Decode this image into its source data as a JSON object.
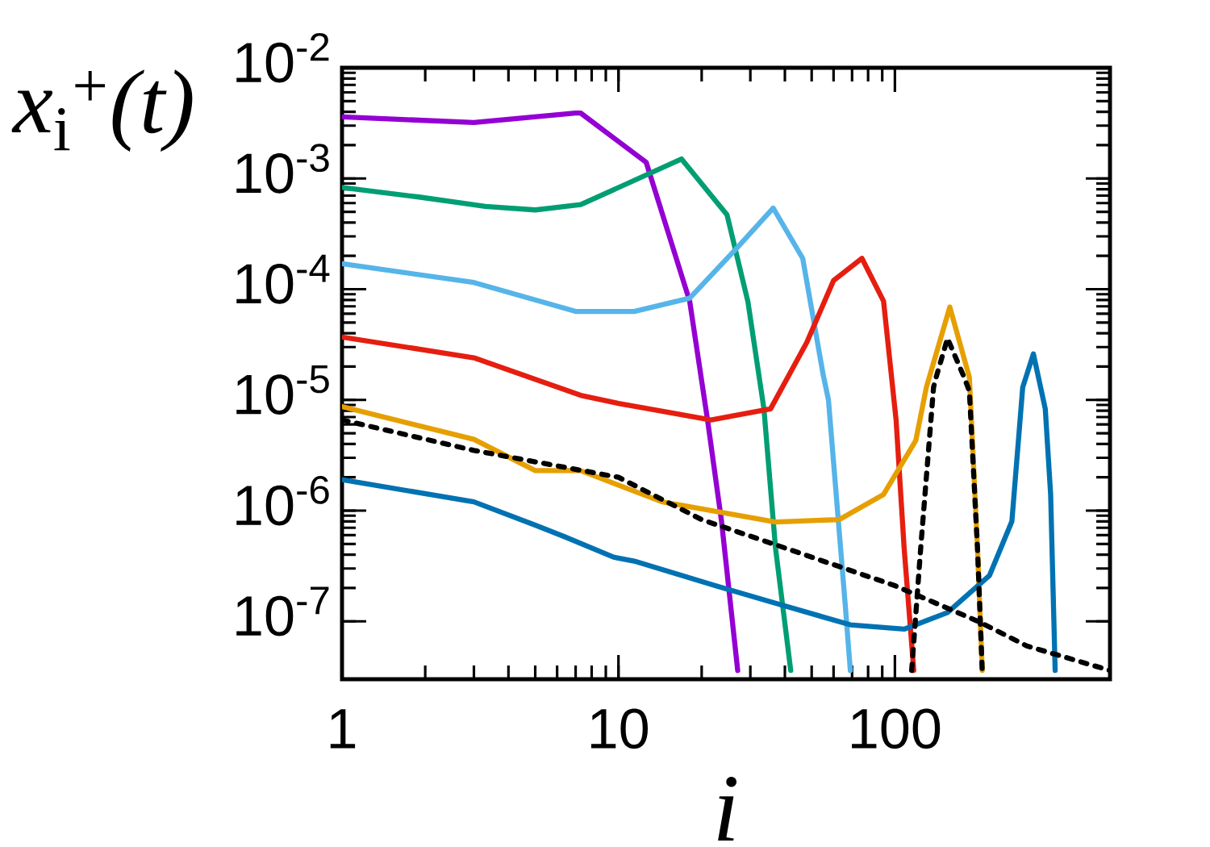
{
  "chart_data": {
    "type": "line",
    "xlabel": "*i*",
    "ylabel": "*x*$_{i}$$^{+}$*(t)*",
    "log": "xy",
    "xlim": [
      1,
      600
    ],
    "ylim": [
      3e-08,
      0.01
    ],
    "xticks": [
      1,
      10,
      100
    ],
    "yticks": [
      {
        "value": 1e-07,
        "label": "10$^{-7}$"
      },
      {
        "value": 1e-06,
        "label": "10$^{-6}$"
      },
      {
        "value": 1e-05,
        "label": "10$^{-5}$"
      },
      {
        "value": 0.0001,
        "label": "10$^{-4}$"
      },
      {
        "value": 0.001,
        "label": "10$^{-3}$"
      },
      {
        "value": 0.01,
        "label": "10$^{-2}$"
      }
    ],
    "series": [
      {
        "color": "#9400d3",
        "x": [
          1,
          3,
          7,
          7.3,
          12.6,
          18.1,
          21,
          23.6,
          27
        ],
        "values": [
          0.0036,
          0.0032,
          0.0039,
          0.0039,
          0.0014,
          7.8e-05,
          6.6e-06,
          8e-07,
          3.6e-08
        ]
      },
      {
        "color": "#009e73",
        "x": [
          1,
          1.9,
          3.3,
          5,
          7.3,
          16.9,
          24.7,
          29.4,
          33.6,
          37,
          42
        ],
        "values": [
          0.00083,
          0.00068,
          0.00056,
          0.00052,
          0.00058,
          0.0015,
          0.00047,
          7.7e-05,
          8.3e-06,
          4.6e-07,
          3.6e-08
        ]
      },
      {
        "color": "#56b4e9",
        "x": [
          1,
          3,
          7,
          11.4,
          18.1,
          27,
          36.3,
          46.4,
          55,
          57.5,
          66,
          69
        ],
        "values": [
          0.00017,
          0.000115,
          6.3e-05,
          6.3e-05,
          8.3e-05,
          0.00024,
          0.00054,
          0.00019,
          1.7e-05,
          1e-05,
          1.5e-07,
          3.6e-08
        ]
      },
      {
        "color": "#e51e10",
        "x": [
          1,
          3,
          7.3,
          10,
          21.6,
          35.5,
          48,
          60,
          76,
          91,
          101,
          108,
          117
        ],
        "values": [
          3.7e-05,
          2.4e-05,
          1.1e-05,
          9.3e-06,
          6.6e-06,
          8.3e-06,
          3.3e-05,
          0.00012,
          0.00019,
          7.8e-05,
          6.6e-06,
          4.6e-07,
          3.6e-08
        ]
      },
      {
        "color": "#e69f00",
        "x": [
          1,
          3,
          5,
          7.3,
          14.4,
          37,
          63,
          91,
          119,
          130,
          158,
          186,
          199,
          207
        ],
        "values": [
          8.7e-06,
          4.4e-06,
          2.3e-06,
          2.3e-06,
          1.2e-06,
          7.9e-07,
          8.3e-07,
          1.4e-06,
          4.3e-06,
          1.3e-05,
          6.9e-05,
          1.6e-05,
          4.6e-07,
          3.6e-08
        ]
      },
      {
        "color": "#0072b2",
        "x": [
          1,
          3,
          5,
          6.4,
          9.6,
          11.4,
          22.4,
          35.5,
          69,
          108,
          155,
          220,
          265,
          290,
          317,
          350,
          366,
          380
        ],
        "values": [
          1.9e-06,
          1.2e-06,
          7.4e-07,
          5.8e-07,
          3.8e-07,
          3.5e-07,
          2.1e-07,
          1.5e-07,
          9.3e-08,
          8.5e-08,
          1.2e-07,
          2.6e-07,
          8e-07,
          1.3e-05,
          2.6e-05,
          8.3e-06,
          1.4e-06,
          3.6e-08
        ]
      },
      {
        "color": "#000000",
        "line_style": "dotted",
        "x": [
          1,
          3,
          10,
          20,
          40,
          100,
          200,
          300,
          600
        ],
        "values": [
          6.6e-06,
          3.5e-06,
          2e-06,
          8.3e-07,
          4.6e-07,
          2.1e-07,
          1e-07,
          6e-08,
          3.6e-08
        ]
      },
      {
        "color": "#000000",
        "line_style": "dotted",
        "x": [
          115,
          124,
          138,
          141,
          155,
          178,
          186,
          199,
          207
        ],
        "values": [
          3.6e-08,
          4.6e-07,
          1.3e-05,
          1.6e-05,
          3.6e-05,
          1.6e-05,
          1.2e-05,
          4.6e-07,
          3.6e-08
        ]
      }
    ]
  }
}
